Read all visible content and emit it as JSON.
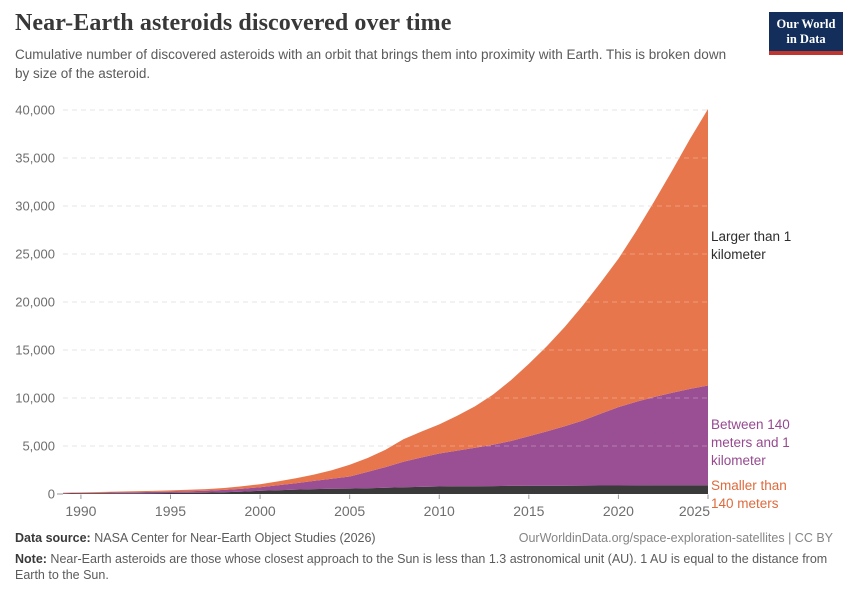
{
  "header": {
    "title": "Near-Earth asteroids discovered over time",
    "subtitle": "Cumulative number of discovered asteroids with an orbit that brings them into proximity with Earth. This is broken down by size of the asteroid.",
    "logo": {
      "line1": "Our World",
      "line2": "in Data"
    }
  },
  "chart_data": {
    "type": "area",
    "stacked": true,
    "title": "Near-Earth asteroids discovered over time",
    "xlabel": "",
    "ylabel": "Cumulative number of discovered asteroids",
    "ylim": [
      0,
      40000
    ],
    "ytick_interval": 5000,
    "xticks": [
      1990,
      1995,
      2000,
      2005,
      2010,
      2015,
      2020,
      2025
    ],
    "grid": "horizontal-dashed",
    "legend_position": "right-edge-annotations",
    "x": [
      1989,
      1990,
      1991,
      1992,
      1993,
      1994,
      1995,
      1996,
      1997,
      1998,
      1999,
      2000,
      2001,
      2002,
      2003,
      2004,
      2005,
      2006,
      2007,
      2008,
      2009,
      2010,
      2011,
      2012,
      2013,
      2014,
      2015,
      2016,
      2017,
      2018,
      2019,
      2020,
      2021,
      2022,
      2023,
      2024,
      2025
    ],
    "series": [
      {
        "name": "Larger than 1 kilometer",
        "color": "#3A3A3A",
        "values": [
          45,
          60,
          70,
          80,
          88,
          96,
          105,
          122,
          142,
          182,
          252,
          330,
          400,
          460,
          510,
          540,
          565,
          605,
          650,
          700,
          742,
          780,
          800,
          815,
          827,
          840,
          852,
          860,
          868,
          875,
          882,
          890,
          896,
          902,
          907,
          912,
          917
        ]
      },
      {
        "name": "Between 140 meters and 1 kilometer",
        "color": "#9A4E94",
        "values": [
          45,
          55,
          70,
          85,
          102,
          124,
          150,
          173,
          203,
          248,
          298,
          380,
          510,
          670,
          850,
          1040,
          1255,
          1695,
          2150,
          2650,
          3058,
          3440,
          3720,
          4005,
          4293,
          4680,
          5168,
          5660,
          6182,
          6775,
          7468,
          8160,
          8704,
          9198,
          9643,
          10038,
          10383
        ]
      },
      {
        "name": "Smaller than 140 meters",
        "color": "#E8764C",
        "values": [
          40,
          55,
          65,
          80,
          95,
          105,
          120,
          140,
          165,
          200,
          250,
          310,
          400,
          520,
          660,
          900,
          1230,
          1450,
          1800,
          2350,
          2700,
          3030,
          3630,
          4330,
          5230,
          6330,
          7530,
          8880,
          10350,
          11950,
          13650,
          15450,
          17800,
          20400,
          23150,
          26050,
          28800
        ]
      }
    ]
  },
  "annotations": [
    {
      "id": "smaller",
      "text": "Smaller than 140 meters",
      "color": "#DE6A3C"
    },
    {
      "id": "between",
      "text": "Between 140 meters and 1 kilometer",
      "color": "#96498F"
    },
    {
      "id": "larger",
      "text": "Larger than 1 kilometer",
      "color": "#2D2D2D"
    }
  ],
  "footer": {
    "data_source_label": "Data source:",
    "data_source_value": " NASA Center for Near-Earth Object Studies (2026)",
    "link": "OurWorldinData.org/space-exploration-satellites | CC BY",
    "note_label": "Note:",
    "note_value": " Near-Earth asteroids are those whose closest approach to the Sun is less than 1.3 astronomical unit (AU). 1 AU is equal to the distance from Earth to the Sun."
  },
  "colors": {
    "accent_navy": "#132E5A",
    "accent_red": "#BE362E",
    "grid": "#DDDDDD",
    "axis_text": "#6E6E6E"
  }
}
